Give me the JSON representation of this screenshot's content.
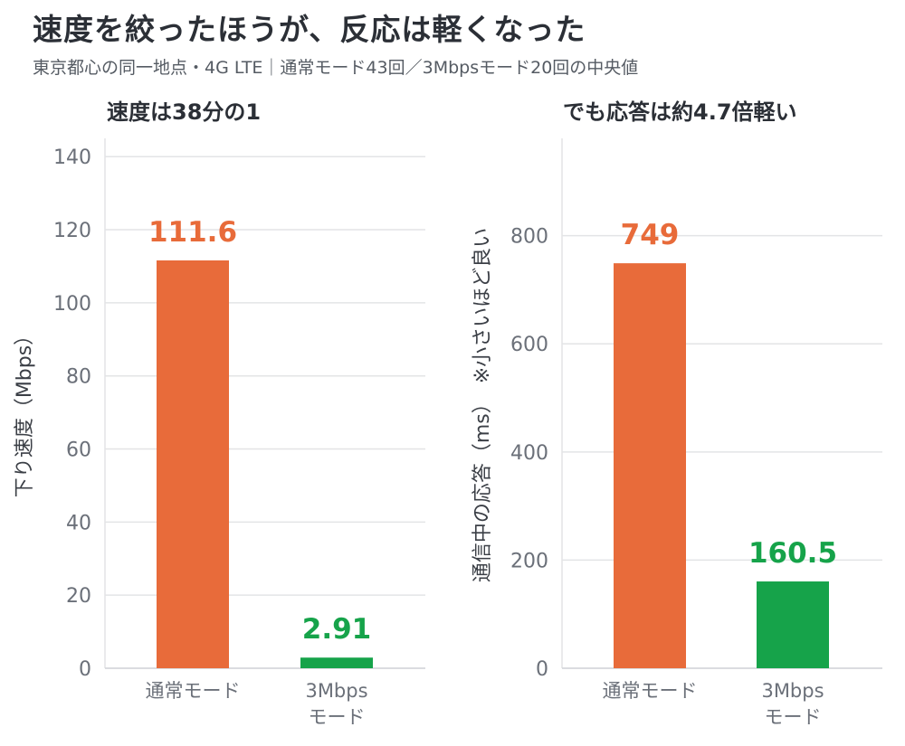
{
  "title": "速度を絞ったほうが、反応は軽くなった",
  "subtitle": "東京都心の同一地点・4G LTE｜通常モード43回／3Mbpsモード20回の中央値",
  "colors": {
    "normal": "#e86b3a",
    "limited": "#16a34a",
    "grid": "#e3e4e6",
    "text": "#2b2f36",
    "muted": "#6b7079"
  },
  "chart_data": [
    {
      "type": "bar",
      "title": "速度は38分の1",
      "ylabel": "下り速度（Mbps）",
      "categories": [
        "通常モード",
        "3Mbps\nモード"
      ],
      "values": [
        111.6,
        2.91
      ],
      "value_labels": [
        "111.6",
        "2.91"
      ],
      "ylim": [
        0,
        145
      ],
      "yticks": [
        0,
        20,
        40,
        60,
        80,
        100,
        120,
        140
      ],
      "grid": true
    },
    {
      "type": "bar",
      "title": "でも応答は約4.7倍軽い",
      "ylabel": "通信中の応答（ms）　※小さいほど良い",
      "categories": [
        "通常モード",
        "3Mbps\nモード"
      ],
      "values": [
        749,
        160.5
      ],
      "value_labels": [
        "749",
        "160.5"
      ],
      "ylim": [
        0,
        980
      ],
      "yticks": [
        0,
        200,
        400,
        600,
        800
      ],
      "grid": true
    }
  ]
}
